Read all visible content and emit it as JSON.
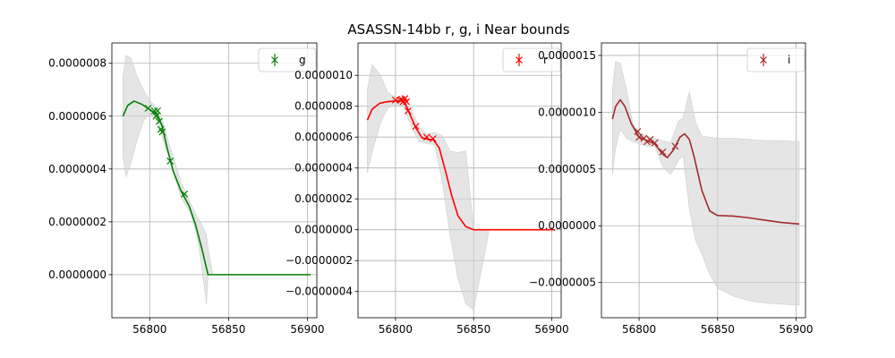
{
  "figure": {
    "title": "ASASSN-14bb  r, g, i Near bounds"
  },
  "chart_data": [
    {
      "type": "line",
      "band": "g",
      "color": "#008000",
      "legend": {
        "label": "g",
        "placement": "upper right"
      },
      "grid": true,
      "xlim": [
        56776,
        56906
      ],
      "ylim": [
        -1.63e-07,
        8.77e-07
      ],
      "xticks": [
        56800,
        56850,
        56900
      ],
      "xtick_labels": [
        "56800",
        "56850",
        "56900"
      ],
      "yticks": [
        0,
        2e-07,
        4e-07,
        6e-07,
        8e-07
      ],
      "ytick_labels": [
        "0.0000000",
        "0.0000002",
        "0.0000004",
        "0.0000006",
        "0.0000008"
      ],
      "model": {
        "x": [
          56783,
          56786,
          56790,
          56795,
          56800,
          56805,
          56808,
          56811,
          56815,
          56820,
          56825,
          56829,
          56833,
          56837,
          56840,
          56850,
          56860,
          56870,
          56880,
          56890,
          56902
        ],
        "y": [
          6e-07,
          6.4e-07,
          6.57e-07,
          6.45e-07,
          6.25e-07,
          6.05e-07,
          5.6e-07,
          4.8e-07,
          3.9e-07,
          3.15e-07,
          2.6e-07,
          1.9e-07,
          1e-07,
          0,
          0,
          0,
          0,
          0,
          0,
          0,
          0
        ]
      },
      "band_region": {
        "x": [
          56783,
          56785,
          56788,
          56792,
          56796,
          56800,
          56805,
          56808,
          56812,
          56820,
          56826,
          56830,
          56833,
          56836,
          56837,
          56840,
          56850,
          56860,
          56870,
          56880,
          56890,
          56902
        ],
        "upper": [
          7.5e-07,
          8.3e-07,
          8.2e-07,
          7.5e-07,
          7e-07,
          6.6e-07,
          6.3e-07,
          5.9e-07,
          5e-07,
          3.5e-07,
          2.7e-07,
          2.2e-07,
          1.9e-07,
          1.5e-07,
          1e-07,
          0,
          0,
          0,
          0,
          0,
          0,
          0
        ],
        "lower": [
          4.5e-07,
          3.7e-07,
          4.2e-07,
          5.1e-07,
          5.8e-07,
          6.1e-07,
          5.8e-07,
          5.2e-07,
          4.5e-07,
          2.9e-07,
          2.3e-07,
          1.5e-07,
          3e-08,
          -1.1e-07,
          0,
          0,
          0,
          0,
          0,
          0,
          0,
          0
        ]
      },
      "points": {
        "x": [
          56799,
          56803,
          56804,
          56805,
          56806,
          56807,
          56808,
          56813,
          56822
        ],
        "y": [
          6.3e-07,
          6.2e-07,
          6e-07,
          6.2e-07,
          5.8e-07,
          5.5e-07,
          5.4e-07,
          4.3e-07,
          3.05e-07
        ]
      }
    },
    {
      "type": "line",
      "band": "r",
      "color": "#ff0000",
      "legend": {
        "label": "r",
        "placement": "upper right"
      },
      "grid": true,
      "xlim": [
        56776,
        56906
      ],
      "ylim": [
        -5.7e-07,
        1.21e-06
      ],
      "xticks": [
        56800,
        56850,
        56900
      ],
      "xtick_labels": [
        "56800",
        "56850",
        "56900"
      ],
      "yticks": [
        -4e-07,
        -2e-07,
        0,
        2e-07,
        4e-07,
        6e-07,
        8e-07,
        1e-06
      ],
      "ytick_labels": [
        "−0.0000004",
        "−0.0000002",
        "0.0000000",
        "0.0000002",
        "0.0000004",
        "0.0000006",
        "0.0000008",
        "0.0000010"
      ],
      "model": {
        "x": [
          56782,
          56785,
          56790,
          56795,
          56800,
          56805,
          56807,
          56810,
          56813,
          56817,
          56821,
          56824,
          56828,
          56832,
          56836,
          56840,
          56845,
          56850,
          56860,
          56870,
          56880,
          56890,
          56902
        ],
        "y": [
          7.1e-07,
          7.8e-07,
          8.2e-07,
          8.3e-07,
          8.35e-07,
          8.35e-07,
          8e-07,
          7.3e-07,
          6.6e-07,
          5.95e-07,
          5.85e-07,
          5.85e-07,
          5.3e-07,
          3.8e-07,
          2.2e-07,
          9e-08,
          2e-08,
          0,
          0,
          0,
          0,
          0,
          0
        ]
      },
      "band_region": {
        "x": [
          56782,
          56785,
          56790,
          56795,
          56800,
          56805,
          56810,
          56815,
          56820,
          56825,
          56830,
          56835,
          56840,
          56845,
          56850,
          56860,
          56870,
          56880,
          56890,
          56902
        ],
        "upper": [
          9.1e-07,
          1.07e-06,
          1.01e-06,
          8.9e-07,
          8.6e-07,
          8.4e-07,
          7.8e-07,
          6.7e-07,
          6.2e-07,
          6.3e-07,
          6.1e-07,
          5.1e-07,
          5e-07,
          5.1e-07,
          0,
          0,
          0,
          0,
          0,
          0
        ],
        "lower": [
          3.7e-07,
          5e-07,
          6.8e-07,
          7.9e-07,
          8.1e-07,
          8e-07,
          6.7e-07,
          5.7e-07,
          5.6e-07,
          5.5e-07,
          3.1e-07,
          -4e-08,
          -3.2e-07,
          -4.8e-07,
          -5.2e-07,
          0,
          0,
          0,
          0,
          0
        ]
      },
      "points": {
        "x": [
          56800,
          56803,
          56804,
          56805,
          56806,
          56807,
          56808,
          56813,
          56820,
          56824
        ],
        "y": [
          8.4e-07,
          8.4e-07,
          8.45e-07,
          8.3e-07,
          8.5e-07,
          8.3e-07,
          7.7e-07,
          6.7e-07,
          6e-07,
          5.9e-07
        ]
      }
    },
    {
      "type": "line",
      "band": "i",
      "color": "#a52a2a",
      "legend": {
        "label": "i",
        "placement": "upper right"
      },
      "grid": true,
      "xlim": [
        56776,
        56906
      ],
      "ylim": [
        -8.1e-07,
        1.61e-06
      ],
      "xticks": [
        56800,
        56850,
        56900
      ],
      "xtick_labels": [
        "56800",
        "56850",
        "56900"
      ],
      "yticks": [
        -5e-07,
        0,
        5e-07,
        1e-06,
        1.5e-06
      ],
      "ytick_labels": [
        "−0.0000005",
        "0.0000000",
        "0.0000005",
        "0.0000010",
        "0.0000015"
      ],
      "model": {
        "x": [
          56783,
          56785,
          56788,
          56791,
          56795,
          56800,
          56805,
          56810,
          56815,
          56818,
          56822,
          56826,
          56829,
          56832,
          56835,
          56840,
          56845,
          56850,
          56860,
          56870,
          56880,
          56890,
          56902
        ],
        "y": [
          9.4e-07,
          1.05e-06,
          1.11e-06,
          1.05e-06,
          9e-07,
          7.8e-07,
          7.5e-07,
          7.2e-07,
          6.3e-07,
          6e-07,
          6.7e-07,
          7.8e-07,
          8.1e-07,
          7.6e-07,
          6.1e-07,
          3.1e-07,
          1.3e-07,
          9e-08,
          8.5e-08,
          7e-08,
          5e-08,
          3e-08,
          1.5e-08
        ]
      },
      "band_region": {
        "x": [
          56783,
          56785,
          56788,
          56792,
          56796,
          56800,
          56805,
          56810,
          56815,
          56820,
          56825,
          56828,
          56832,
          56836,
          56840,
          56845,
          56850,
          56860,
          56870,
          56880,
          56890,
          56902
        ],
        "upper": [
          1.2e-06,
          1.45e-06,
          1.43e-06,
          1.2e-06,
          9e-07,
          8.2e-07,
          7.9e-07,
          7.7e-07,
          7.5e-07,
          7.3e-07,
          9.2e-07,
          9.5e-07,
          1.18e-06,
          9.1e-07,
          7.9e-07,
          7.8e-07,
          7.7e-07,
          7.7e-07,
          7.6e-07,
          7.5e-07,
          7.5e-07,
          7.4e-07
        ],
        "lower": [
          4.6e-07,
          6.8e-07,
          8.5e-07,
          7.7e-07,
          7.4e-07,
          7.2e-07,
          7e-07,
          7e-07,
          5.2e-07,
          4.5e-07,
          5.7e-07,
          6.2e-07,
          1.5e-07,
          -1.3e-07,
          -2.5e-07,
          -4.3e-07,
          -5.5e-07,
          -6.2e-07,
          -6.6e-07,
          -6.8e-07,
          -6.9e-07,
          -7e-07
        ]
      },
      "points": {
        "x": [
          56799,
          56800,
          56803,
          56805,
          56807,
          56810,
          56815,
          56823
        ],
        "y": [
          8.3e-07,
          7.8e-07,
          7.7e-07,
          7.4e-07,
          7.6e-07,
          7.3e-07,
          6.5e-07,
          7e-07
        ]
      }
    }
  ]
}
